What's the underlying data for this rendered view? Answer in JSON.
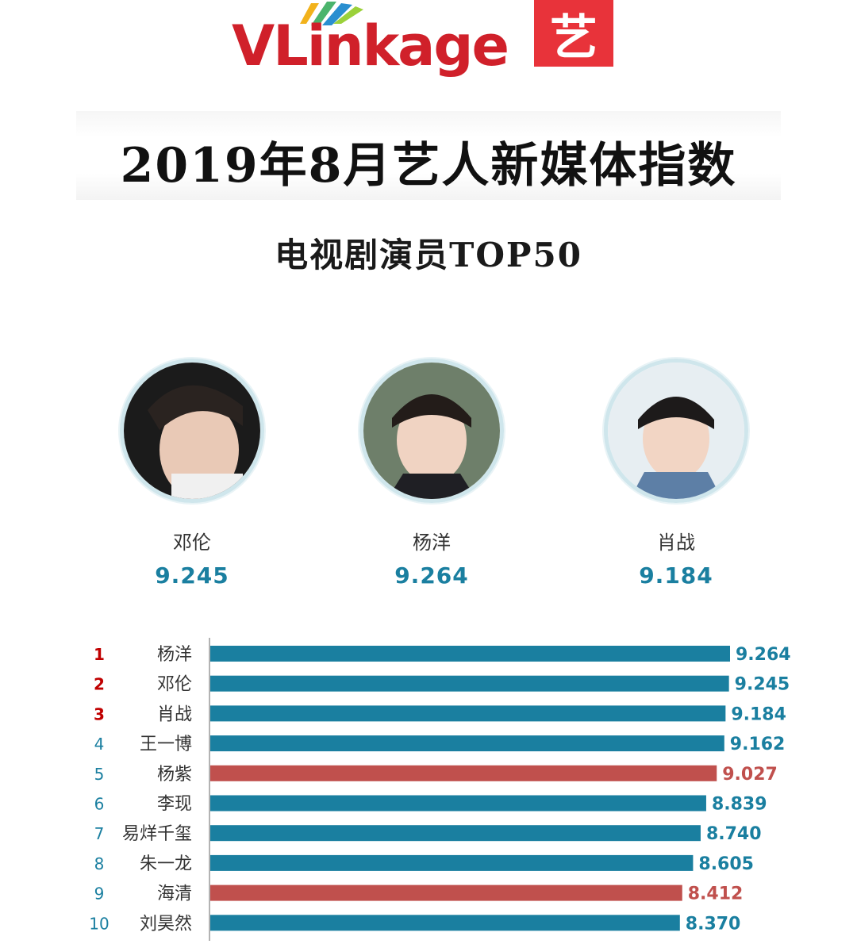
{
  "header": {
    "brand_name": "VLinkage",
    "art_logo_char": "艺",
    "title": "2019年8月艺人新媒体指数",
    "subtitle": "电视剧演员TOP50"
  },
  "podium": [
    {
      "name": "邓伦",
      "score": "9.245"
    },
    {
      "name": "杨洋",
      "score": "9.264"
    },
    {
      "name": "肖战",
      "score": "9.184"
    }
  ],
  "colors": {
    "bar_teal": "#1a7fa0",
    "bar_red": "#c0504d",
    "rank_red": "#c00000",
    "rank_teal": "#1a7fa0"
  },
  "chart_data": {
    "type": "bar",
    "orientation": "horizontal",
    "ranks": [
      "1",
      "2",
      "3",
      "4",
      "5",
      "6",
      "7",
      "8",
      "9",
      "10"
    ],
    "categories": [
      "杨洋",
      "邓伦",
      "肖战",
      "王一博",
      "杨紫",
      "李现",
      "易烊千玺",
      "朱一龙",
      "海清",
      "刘昊然"
    ],
    "values": [
      9.264,
      9.245,
      9.184,
      9.162,
      9.027,
      8.839,
      8.74,
      8.605,
      8.412,
      8.37
    ],
    "value_labels": [
      "9.264",
      "9.245",
      "9.184",
      "9.162",
      "9.027",
      "8.839",
      "8.740",
      "8.605",
      "8.412",
      "8.370"
    ],
    "highlight": [
      false,
      false,
      false,
      false,
      true,
      false,
      false,
      false,
      true,
      false
    ],
    "xlim": [
      0,
      9.264
    ]
  }
}
